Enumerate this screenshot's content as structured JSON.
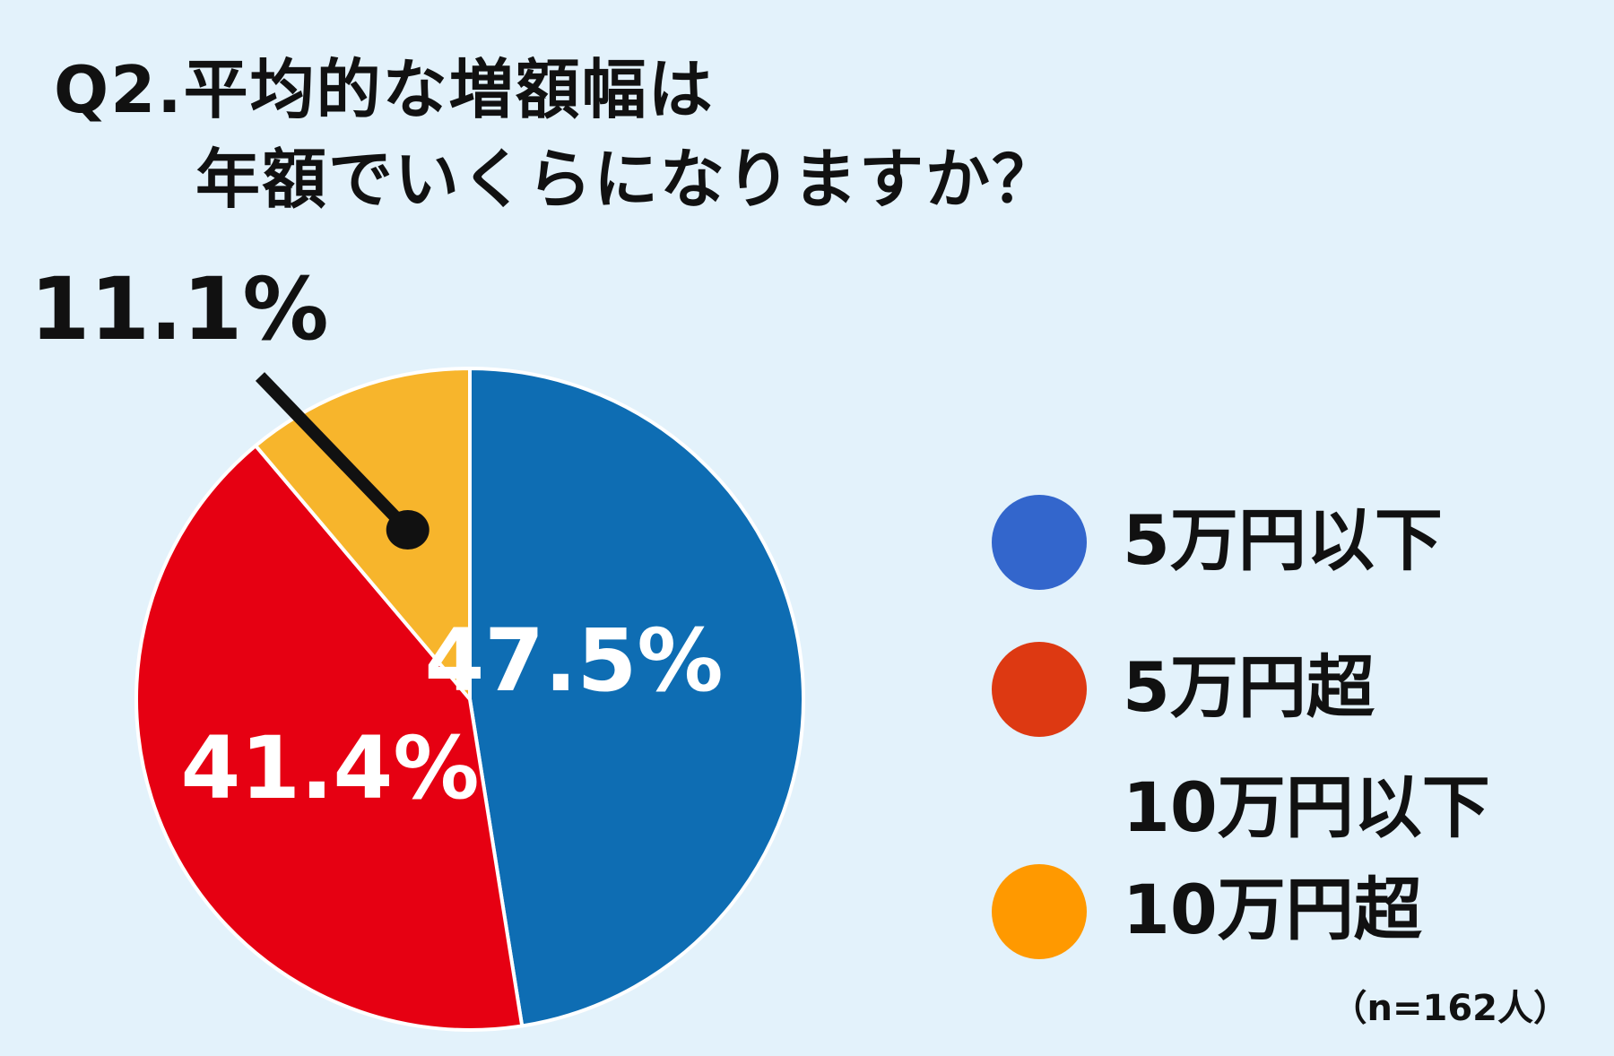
{
  "title_line1": "Q2.平均的な増額幅は",
  "title_line2": "年額でいくらになりますか？",
  "sample_note": "（n=162人）",
  "chart_data": {
    "type": "pie",
    "title": "Q2.平均的な増額幅は年額でいくらになりますか？",
    "categories": [
      "5万円以下",
      "5万円超10万円以下",
      "10万円超"
    ],
    "values": [
      47.5,
      41.4,
      11.1
    ],
    "value_labels": [
      "47.5%",
      "41.4%",
      "11.1%"
    ],
    "slice_colors": [
      "#0e6db3",
      "#e60012",
      "#f7b52c"
    ],
    "legend_colors": [
      "#3366cc",
      "#dd3912",
      "#ff9900"
    ],
    "legend": {
      "position": "right",
      "entries": [
        {
          "lines": [
            "5万円以下"
          ]
        },
        {
          "lines": [
            "5万円超",
            "10万円以下"
          ]
        },
        {
          "lines": [
            "10万円超"
          ]
        }
      ]
    }
  }
}
